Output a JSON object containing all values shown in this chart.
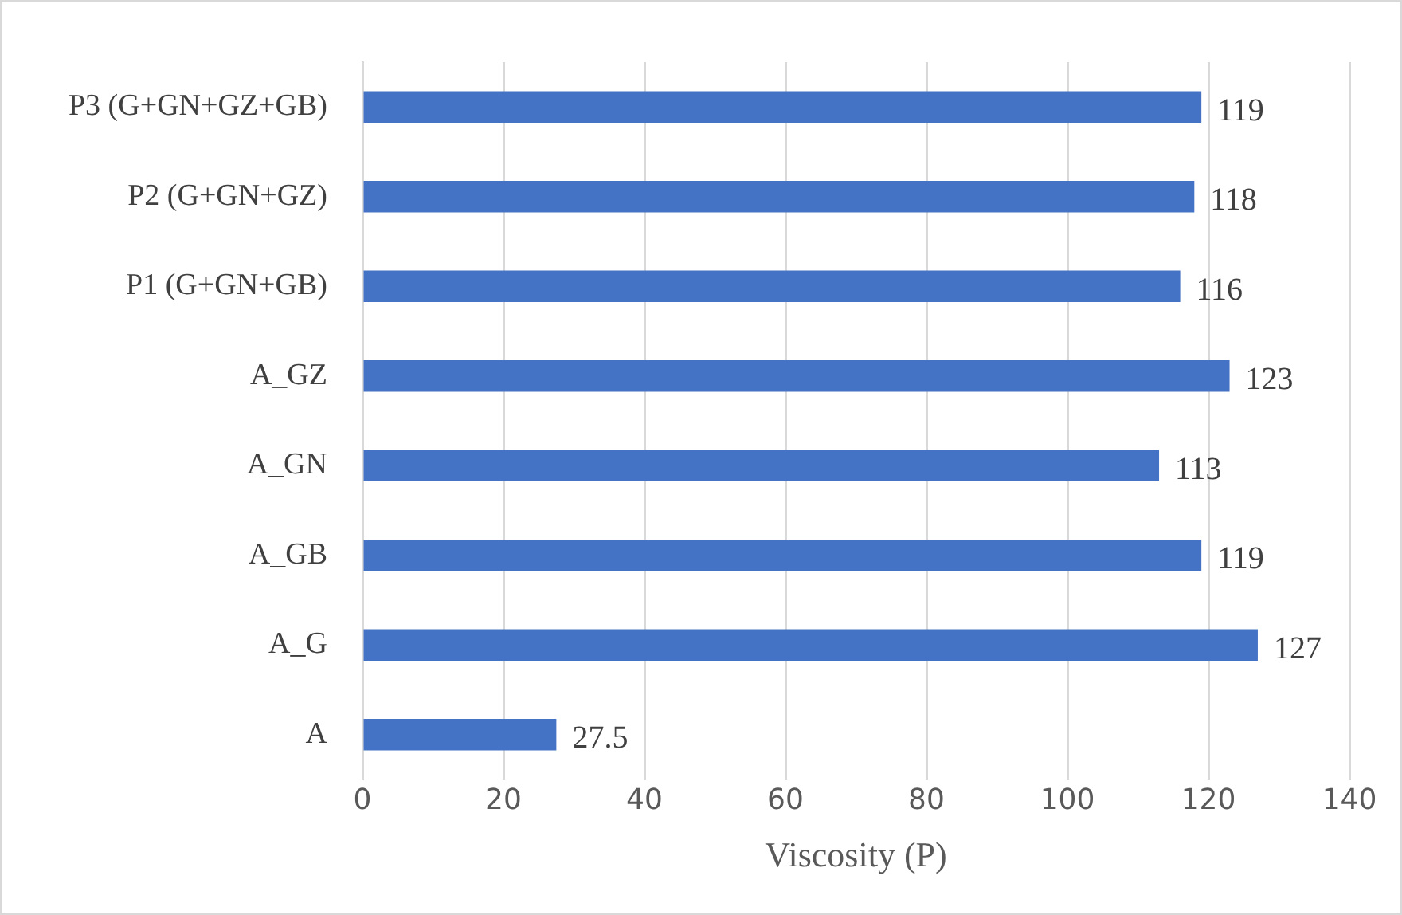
{
  "chart_data": {
    "type": "bar",
    "orientation": "horizontal",
    "xlabel": "Viscosity (P)",
    "categories": [
      "P3 (G+GN+GZ+GB)",
      "P2 (G+GN+GZ)",
      "P1 (G+GN+GB)",
      "A_GZ",
      "A_GN",
      "A_GB",
      "A_G",
      "A"
    ],
    "values": [
      119,
      118,
      116,
      123,
      113,
      119,
      127,
      27.5
    ],
    "color": "#4472c4",
    "xlim": [
      0,
      140
    ],
    "xticks": [
      0,
      20,
      40,
      60,
      80,
      100,
      120,
      140
    ],
    "grid": "x",
    "data_labels": true,
    "legend": false
  }
}
